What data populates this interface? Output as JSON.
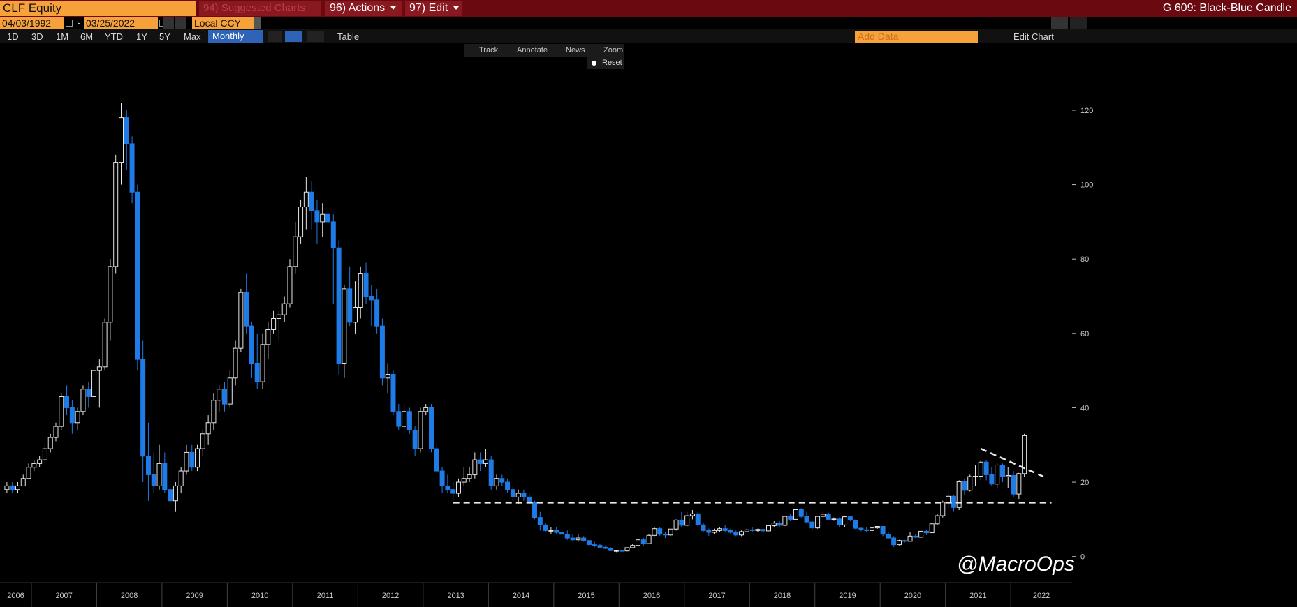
{
  "ui": {
    "security": "CLF Equity",
    "menu_suggested": "94) Suggested Charts",
    "menu_actions": "96) Actions",
    "menu_edit": "97) Edit",
    "chart_name": "G 609: Black-Blue Candle",
    "start_date": "04/03/1992",
    "date_separator": "-",
    "end_date": "03/25/2022",
    "currency": "Local CCY",
    "periods": [
      "1D",
      "3D",
      "1M",
      "6M",
      "YTD",
      "1Y",
      "5Y",
      "Max"
    ],
    "frequency": "Monthly",
    "table_button": "Table",
    "add_data": "Add Data",
    "edit_chart": "Edit Chart",
    "tools": [
      "Track",
      "Annotate",
      "News",
      "Zoom"
    ],
    "reset": "Reset"
  },
  "chart_data": {
    "type": "candlestick",
    "watermark": "@MacroOps",
    "up_color": "#000000",
    "up_stroke": "#e6e6e6",
    "down_color": "#1f7be6",
    "ylim": [
      -7,
      138
    ],
    "yticks": [
      0,
      20,
      40,
      60,
      80,
      100,
      120
    ],
    "year_labels": [
      "2006",
      "2007",
      "2008",
      "2009",
      "2010",
      "2011",
      "2012",
      "2013",
      "2014",
      "2015",
      "2016",
      "2017",
      "2018",
      "2019",
      "2020",
      "2021",
      "2022"
    ],
    "trend_lines": [
      {
        "from": 14.5,
        "to": 14.5
      },
      {
        "from": 29,
        "to": 21.5
      }
    ],
    "candles": [
      [
        18,
        20,
        17,
        19
      ],
      [
        19,
        20,
        17,
        18
      ],
      [
        18,
        20,
        17,
        19
      ],
      [
        19,
        22,
        19,
        21
      ],
      [
        21,
        25,
        21,
        24
      ],
      [
        24,
        26,
        23,
        25
      ],
      [
        25,
        27,
        24,
        26
      ],
      [
        26,
        30,
        25,
        29
      ],
      [
        29,
        33,
        28,
        32
      ],
      [
        32,
        36,
        31,
        35
      ],
      [
        35,
        44,
        34,
        43
      ],
      [
        43,
        46,
        38,
        40
      ],
      [
        40,
        42,
        33,
        36
      ],
      [
        36,
        40,
        34,
        39
      ],
      [
        39,
        46,
        38,
        45
      ],
      [
        45,
        47,
        40,
        43
      ],
      [
        43,
        52,
        42,
        50
      ],
      [
        50,
        53,
        40,
        51
      ],
      [
        51,
        64,
        50,
        63
      ],
      [
        63,
        80,
        58,
        78
      ],
      [
        78,
        108,
        76,
        106
      ],
      [
        106,
        122,
        100,
        118
      ],
      [
        118,
        120,
        104,
        111
      ],
      [
        111,
        113,
        95,
        98
      ],
      [
        98,
        100,
        50,
        53
      ],
      [
        53,
        58,
        20,
        27
      ],
      [
        27,
        36,
        15,
        22
      ],
      [
        22,
        28,
        17,
        19
      ],
      [
        19,
        30,
        18,
        25
      ],
      [
        25,
        28,
        17,
        18
      ],
      [
        18,
        20,
        14,
        15
      ],
      [
        15,
        20,
        12,
        19
      ],
      [
        19,
        24,
        17,
        23
      ],
      [
        23,
        30,
        22,
        28
      ],
      [
        28,
        30,
        23,
        24
      ],
      [
        24,
        30,
        23,
        29
      ],
      [
        29,
        34,
        27,
        33
      ],
      [
        33,
        38,
        30,
        36
      ],
      [
        36,
        44,
        34,
        42
      ],
      [
        42,
        46,
        39,
        45
      ],
      [
        45,
        47,
        39,
        41
      ],
      [
        41,
        50,
        40,
        48
      ],
      [
        48,
        58,
        46,
        56
      ],
      [
        56,
        72,
        55,
        71
      ],
      [
        71,
        76,
        60,
        62
      ],
      [
        62,
        63,
        48,
        52
      ],
      [
        52,
        60,
        45,
        47
      ],
      [
        47,
        60,
        45,
        57
      ],
      [
        57,
        63,
        53,
        61
      ],
      [
        61,
        66,
        60,
        64
      ],
      [
        64,
        66,
        58,
        65
      ],
      [
        65,
        70,
        63,
        68
      ],
      [
        68,
        80,
        67,
        78
      ],
      [
        78,
        90,
        76,
        86
      ],
      [
        86,
        96,
        84,
        94
      ],
      [
        94,
        102,
        88,
        98
      ],
      [
        98,
        101,
        88,
        93
      ],
      [
        93,
        96,
        84,
        90
      ],
      [
        90,
        95,
        86,
        92
      ],
      [
        92,
        102,
        88,
        90
      ],
      [
        90,
        92,
        68,
        83
      ],
      [
        83,
        85,
        49,
        52
      ],
      [
        52,
        73,
        48,
        72
      ],
      [
        72,
        78,
        62,
        63
      ],
      [
        63,
        74,
        60,
        67
      ],
      [
        67,
        78,
        64,
        76
      ],
      [
        76,
        79,
        68,
        70
      ],
      [
        70,
        73,
        62,
        69
      ],
      [
        69,
        72,
        60,
        62
      ],
      [
        62,
        64,
        46,
        48
      ],
      [
        48,
        52,
        44,
        49
      ],
      [
        49,
        50,
        38,
        39
      ],
      [
        39,
        41,
        34,
        35
      ],
      [
        35,
        41,
        33,
        39
      ],
      [
        39,
        40,
        33,
        34
      ],
      [
        34,
        35,
        27,
        29
      ],
      [
        29,
        40,
        28,
        39
      ],
      [
        39,
        41,
        38,
        40
      ],
      [
        40,
        41,
        28,
        29
      ],
      [
        29,
        30,
        23,
        23
      ],
      [
        23,
        24,
        17,
        19
      ],
      [
        19,
        22,
        17,
        18
      ],
      [
        18,
        20,
        15,
        17
      ],
      [
        17,
        21,
        16,
        20
      ],
      [
        20,
        24,
        19,
        21
      ],
      [
        21,
        24,
        20,
        22
      ],
      [
        22,
        28,
        21,
        26
      ],
      [
        26,
        28,
        23,
        25
      ],
      [
        25,
        29,
        24,
        26
      ],
      [
        26,
        27,
        18,
        19
      ],
      [
        19,
        22,
        18,
        21
      ],
      [
        21,
        22,
        19,
        20
      ],
      [
        20,
        21,
        17,
        18
      ],
      [
        18,
        19,
        15,
        16
      ],
      [
        16,
        18,
        14,
        17
      ],
      [
        17,
        18,
        15,
        16
      ],
      [
        16,
        17,
        14,
        14.5
      ],
      [
        14.5,
        15,
        10,
        10.5
      ],
      [
        10.5,
        12,
        7,
        8.5
      ],
      [
        8.5,
        9,
        6.5,
        7
      ],
      [
        7,
        8,
        6,
        7
      ],
      [
        7,
        8,
        6,
        6.5
      ],
      [
        6.5,
        7.5,
        5.5,
        6
      ],
      [
        6,
        7,
        4.5,
        5
      ],
      [
        5,
        6,
        4,
        4.5
      ],
      [
        4.5,
        6,
        4,
        5
      ],
      [
        5,
        5.5,
        4,
        4.3
      ],
      [
        4.3,
        4.5,
        3,
        3.2
      ],
      [
        3.2,
        4,
        2.5,
        3
      ],
      [
        3,
        3.5,
        2.2,
        2.5
      ],
      [
        2.5,
        3,
        2,
        2.2
      ],
      [
        2.2,
        2.5,
        1.5,
        1.6
      ],
      [
        1.6,
        1.8,
        1.2,
        1.6
      ],
      [
        1.6,
        1.8,
        1.3,
        1.5
      ],
      [
        1.5,
        2.5,
        1.4,
        2.4
      ],
      [
        2.4,
        3.5,
        2.2,
        3
      ],
      [
        3,
        5,
        2.8,
        4.5
      ],
      [
        4.5,
        5,
        3,
        3.5
      ],
      [
        3.5,
        6,
        3.4,
        5.7
      ],
      [
        5.7,
        8,
        5.5,
        7.5
      ],
      [
        7.5,
        8,
        5.6,
        6
      ],
      [
        6,
        6.5,
        5,
        5.8
      ],
      [
        5.8,
        7.5,
        5.5,
        7.4
      ],
      [
        7.4,
        10,
        7,
        9.8
      ],
      [
        9.8,
        12,
        8,
        8.4
      ],
      [
        8.4,
        12,
        8,
        11
      ],
      [
        11,
        12.5,
        10,
        11.5
      ],
      [
        11.5,
        12,
        8,
        8.5
      ],
      [
        8.5,
        9,
        6.5,
        7
      ],
      [
        7,
        7.5,
        5.6,
        6.5
      ],
      [
        6.5,
        7.5,
        6,
        7
      ],
      [
        7,
        8,
        6.5,
        7.5
      ],
      [
        7.5,
        8.5,
        6.5,
        7
      ],
      [
        7,
        7.5,
        6,
        6.5
      ],
      [
        6.5,
        7,
        5.5,
        5.8
      ],
      [
        5.8,
        7,
        5.5,
        6.7
      ],
      [
        6.7,
        7.5,
        6.5,
        7.2
      ],
      [
        7.2,
        8,
        6.5,
        7
      ],
      [
        7,
        7.5,
        6.5,
        7.3
      ],
      [
        7.3,
        7.5,
        6.5,
        6.9
      ],
      [
        6.9,
        8.5,
        6.8,
        8.3
      ],
      [
        8.3,
        9.5,
        8,
        9
      ],
      [
        9,
        9.5,
        8,
        8.4
      ],
      [
        8.4,
        11,
        8.2,
        10.8
      ],
      [
        10.8,
        11.5,
        9.5,
        10
      ],
      [
        10,
        13,
        9.8,
        12.6
      ],
      [
        12.6,
        13,
        10.5,
        10.8
      ],
      [
        10.8,
        12,
        9,
        9.3
      ],
      [
        9.3,
        9.5,
        7,
        7.7
      ],
      [
        7.7,
        11,
        7.5,
        10.8
      ],
      [
        10.8,
        12,
        10.5,
        11.4
      ],
      [
        11.4,
        11.8,
        9.8,
        10
      ],
      [
        10,
        10.5,
        9.6,
        10.1
      ],
      [
        10.1,
        10.5,
        8,
        8.5
      ],
      [
        8.5,
        11,
        8,
        10.7
      ],
      [
        10.7,
        11,
        9.5,
        9.8
      ],
      [
        9.8,
        10,
        7.3,
        7.6
      ],
      [
        7.6,
        8,
        6.8,
        7.2
      ],
      [
        7.2,
        7.8,
        6.5,
        7
      ],
      [
        7,
        8,
        6.8,
        7.7
      ],
      [
        7.7,
        8.2,
        7.5,
        8.1
      ],
      [
        8.1,
        8.2,
        5.5,
        6
      ],
      [
        6,
        6.5,
        4.8,
        5
      ],
      [
        5,
        5.5,
        2.6,
        3.2
      ],
      [
        3.2,
        4.5,
        3,
        4.3
      ],
      [
        4.3,
        4.5,
        3.8,
        4.1
      ],
      [
        4.1,
        6.5,
        4,
        5.5
      ],
      [
        5.5,
        6,
        5,
        5.2
      ],
      [
        5.2,
        7,
        5.1,
        6.8
      ],
      [
        6.8,
        7.2,
        5.8,
        6.4
      ],
      [
        6.4,
        9,
        6.3,
        8.8
      ],
      [
        8.8,
        11.5,
        8.5,
        11
      ],
      [
        11,
        15,
        10.5,
        14.6
      ],
      [
        14.6,
        17.5,
        13,
        16.2
      ],
      [
        16.2,
        16.5,
        12,
        13.2
      ],
      [
        13.2,
        20.5,
        12.5,
        20.1
      ],
      [
        20.1,
        21,
        16.5,
        17.8
      ],
      [
        17.8,
        22,
        17.5,
        21.5
      ],
      [
        21.5,
        24.5,
        19,
        21.6
      ],
      [
        21.6,
        26,
        20.5,
        25.4
      ],
      [
        25.4,
        26,
        20.5,
        22
      ],
      [
        22,
        24,
        19,
        19.5
      ],
      [
        19.5,
        25,
        18.5,
        24.6
      ],
      [
        24.6,
        25,
        20,
        21.5
      ],
      [
        21.5,
        24,
        18.5,
        21.8
      ],
      [
        21.8,
        23,
        16,
        16.8
      ],
      [
        16.8,
        22.5,
        15.5,
        22.3
      ],
      [
        22.3,
        33,
        21.5,
        32.5
      ]
    ]
  }
}
